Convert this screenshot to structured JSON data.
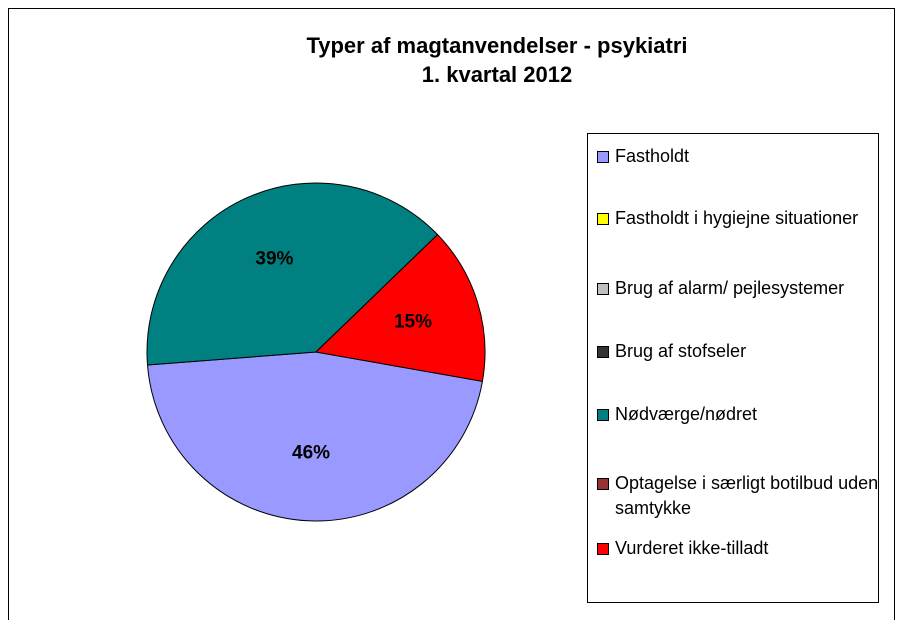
{
  "chart_data": {
    "type": "pie",
    "title": "Typer af magtanvendelser - psykiatri",
    "subtitle": "1. kvartal 2012",
    "categories": [
      "Fastholdt",
      "Fastholdt i hygiejne situationer",
      "Brug af alarm/ pejlesystemer",
      "Brug af stofseler",
      "Nødværge/nødret",
      "Optagelse i særligt botilbud uden samtykke",
      "Vurderet ikke-tilladt"
    ],
    "values": [
      46,
      0,
      0,
      0,
      39,
      0,
      15
    ],
    "value_labels": [
      "46%",
      null,
      null,
      null,
      "39%",
      null,
      "15%"
    ],
    "colors": [
      "#9999ff",
      "#ffff00",
      "#c0c0c0",
      "#333333",
      "#008080",
      "#993333",
      "#ff0000"
    ],
    "legend": "right"
  }
}
